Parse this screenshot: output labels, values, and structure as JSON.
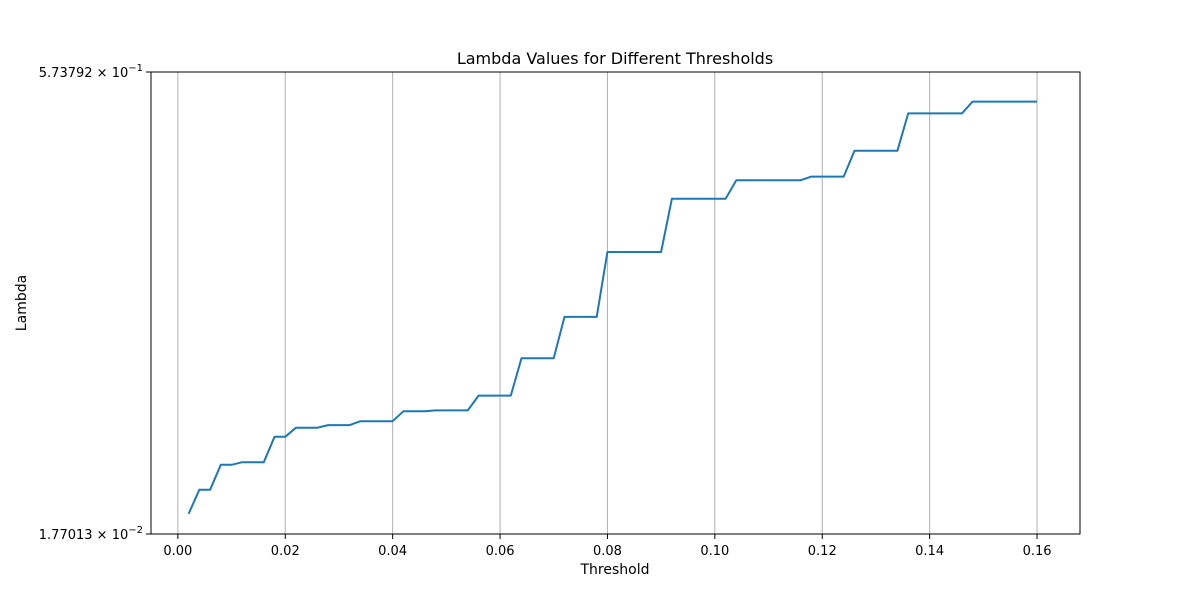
{
  "chart_data": {
    "type": "line",
    "title": "Lambda Values for Different Thresholds",
    "xlabel": "Threshold",
    "ylabel": "Lambda",
    "xlim": [
      -0.005,
      0.168
    ],
    "ylim": [
      0.0177013,
      0.573792
    ],
    "yscale": "log",
    "grid": "vertical",
    "x_ticks": [
      0.0,
      0.02,
      0.04,
      0.06,
      0.08,
      0.1,
      0.12,
      0.14,
      0.16
    ],
    "x_tick_labels": [
      "0.00",
      "0.02",
      "0.04",
      "0.06",
      "0.08",
      "0.10",
      "0.12",
      "0.14",
      "0.16"
    ],
    "y_tick_labels": [
      {
        "mantissa": "1.77013",
        "times": "×",
        "base": "10",
        "exponent": "−2",
        "value": 0.0177013
      },
      {
        "mantissa": "5.73792",
        "times": "×",
        "base": "10",
        "exponent": "−1",
        "value": 0.573792
      }
    ],
    "series": [
      {
        "color": "#1f77b4",
        "x": [
          0.002,
          0.004,
          0.006,
          0.008,
          0.01,
          0.012,
          0.014,
          0.016,
          0.018,
          0.02,
          0.022,
          0.024,
          0.026,
          0.028,
          0.03,
          0.032,
          0.034,
          0.036,
          0.038,
          0.04,
          0.042,
          0.044,
          0.046,
          0.048,
          0.05,
          0.052,
          0.054,
          0.056,
          0.058,
          0.06,
          0.062,
          0.064,
          0.066,
          0.068,
          0.07,
          0.072,
          0.074,
          0.076,
          0.078,
          0.08,
          0.082,
          0.084,
          0.086,
          0.088,
          0.09,
          0.092,
          0.094,
          0.096,
          0.098,
          0.1,
          0.102,
          0.104,
          0.106,
          0.108,
          0.11,
          0.112,
          0.114,
          0.116,
          0.118,
          0.12,
          0.122,
          0.124,
          0.126,
          0.128,
          0.13,
          0.132,
          0.134,
          0.136,
          0.138,
          0.14,
          0.142,
          0.144,
          0.146,
          0.148,
          0.15,
          0.152,
          0.154,
          0.156,
          0.158,
          0.16
        ],
        "y": [
          0.0206,
          0.0247,
          0.0247,
          0.0298,
          0.0298,
          0.0304,
          0.0304,
          0.0304,
          0.0368,
          0.0368,
          0.0394,
          0.0394,
          0.0394,
          0.0402,
          0.0402,
          0.0402,
          0.0414,
          0.0414,
          0.0414,
          0.0414,
          0.0446,
          0.0446,
          0.0446,
          0.0449,
          0.0449,
          0.0449,
          0.0449,
          0.0502,
          0.0502,
          0.0502,
          0.0502,
          0.0665,
          0.0665,
          0.0665,
          0.0665,
          0.0908,
          0.0908,
          0.0908,
          0.0908,
          0.148,
          0.148,
          0.148,
          0.148,
          0.148,
          0.148,
          0.221,
          0.221,
          0.221,
          0.221,
          0.221,
          0.221,
          0.254,
          0.254,
          0.254,
          0.254,
          0.254,
          0.254,
          0.254,
          0.261,
          0.261,
          0.261,
          0.261,
          0.317,
          0.317,
          0.317,
          0.317,
          0.317,
          0.42,
          0.42,
          0.42,
          0.42,
          0.42,
          0.42,
          0.459,
          0.459,
          0.459,
          0.459,
          0.459,
          0.459,
          0.459
        ]
      }
    ]
  }
}
